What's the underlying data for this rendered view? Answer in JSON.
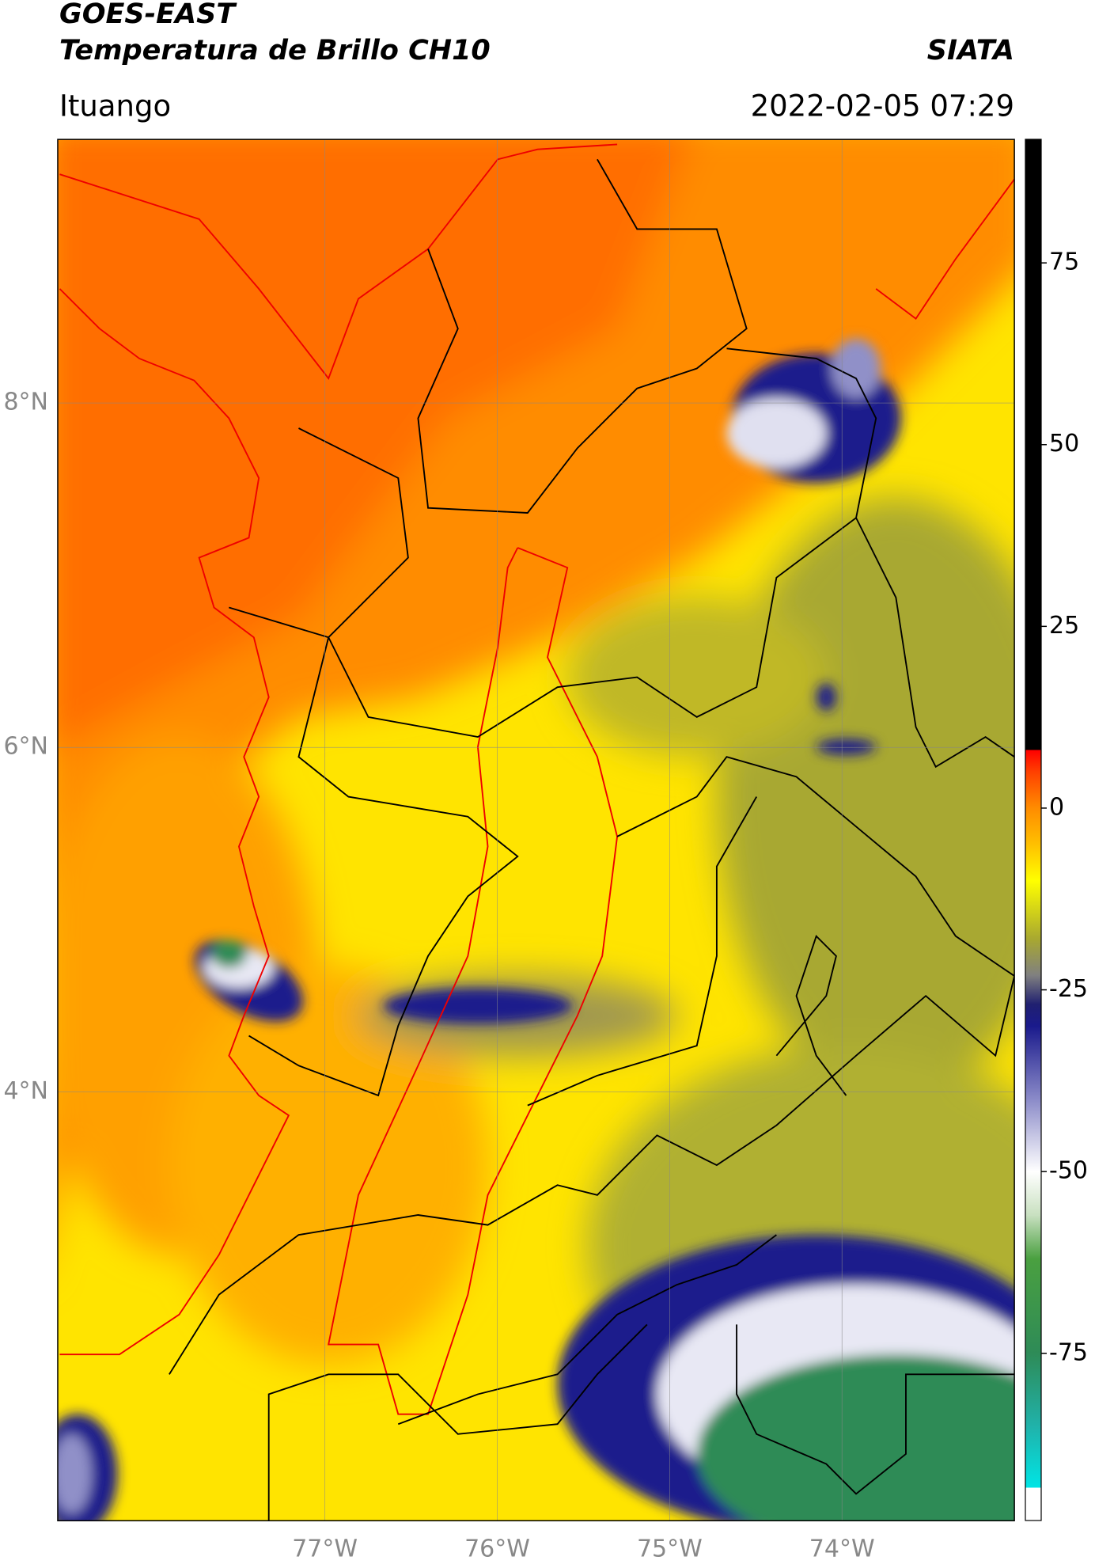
{
  "header": {
    "title": "GOES-EAST",
    "subtitle": "Temperatura de Brillo CH10",
    "source": "SIATA",
    "location": "Ituango",
    "datetime": "2022-02-05 07:29"
  },
  "map": {
    "xlim": [
      -78.55,
      -73.0
    ],
    "ylim": [
      1.51,
      9.53
    ],
    "xticks": [
      {
        "value": -77,
        "label": "77°W"
      },
      {
        "value": -76,
        "label": "76°W"
      },
      {
        "value": -75,
        "label": "75°W"
      },
      {
        "value": -74,
        "label": "74°W"
      }
    ],
    "yticks": [
      {
        "value": 4,
        "label": "4°N"
      },
      {
        "value": 6,
        "label": "6°N"
      },
      {
        "value": 8,
        "label": "8°N"
      }
    ],
    "grid": true
  },
  "colorbar": {
    "lim": [
      -98,
      92
    ],
    "ticks": [
      -75,
      -50,
      -25,
      0,
      25,
      50,
      75
    ],
    "stops": [
      {
        "value": -98,
        "color": "#ffffff"
      },
      {
        "value": -93.5,
        "color": "#ffffff"
      },
      {
        "value": -93.5,
        "color": "#00e5e5"
      },
      {
        "value": -85,
        "color": "#20b2aa"
      },
      {
        "value": -75,
        "color": "#2e8b57"
      },
      {
        "value": -62,
        "color": "#4aa040"
      },
      {
        "value": -56,
        "color": "#c8e0c0"
      },
      {
        "value": -50,
        "color": "#ffffff"
      },
      {
        "value": -40,
        "color": "#8a8ac8"
      },
      {
        "value": -30,
        "color": "#1a1a8c"
      },
      {
        "value": -27,
        "color": "#202070"
      },
      {
        "value": -23,
        "color": "#808080"
      },
      {
        "value": -18,
        "color": "#a8a830"
      },
      {
        "value": -10,
        "color": "#ffff00"
      },
      {
        "value": -5,
        "color": "#ffc000"
      },
      {
        "value": 0,
        "color": "#ff8c00"
      },
      {
        "value": 5,
        "color": "#ff4000"
      },
      {
        "value": 8,
        "color": "#ff0000"
      },
      {
        "value": 8,
        "color": "#000000"
      },
      {
        "value": 92,
        "color": "#000000"
      }
    ]
  }
}
